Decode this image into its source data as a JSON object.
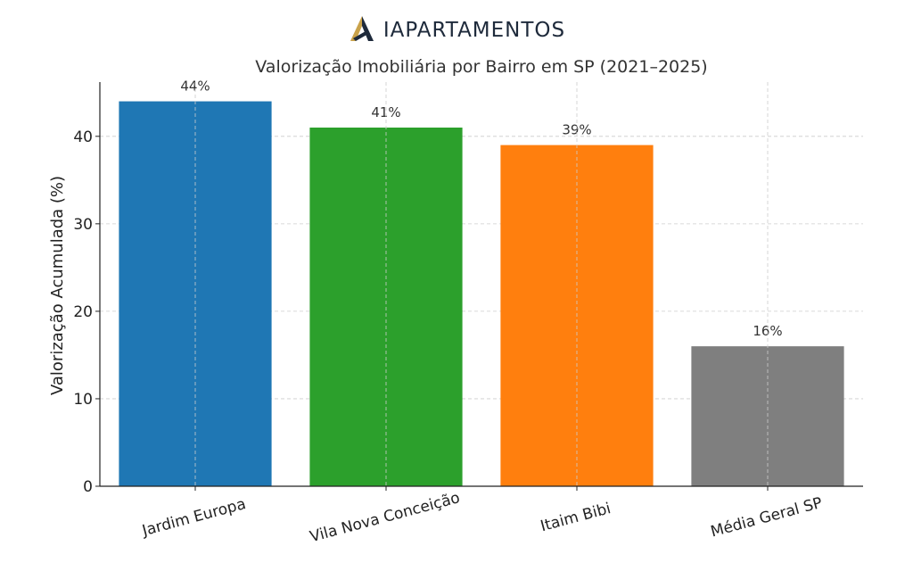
{
  "brand": {
    "name": "IAPARTAMENTOS",
    "logo_icon": "stylized-A-logo",
    "colors": {
      "gold": "#c9a24a",
      "navy": "#1e2a3b"
    }
  },
  "chart_data": {
    "type": "bar",
    "title": "Valorização Imobiliária por Bairro em SP (2021–2025)",
    "xlabel": "",
    "ylabel": "Valorização Acumulada (%)",
    "categories": [
      "Jardim Europa",
      "Vila Nova Conceição",
      "Itaim Bibi",
      "Média Geral SP"
    ],
    "values": [
      44,
      41,
      39,
      16
    ],
    "data_labels": [
      "44%",
      "41%",
      "39%",
      "16%"
    ],
    "colors": [
      "#1f77b4",
      "#2ca02c",
      "#ff7f0e",
      "#7f7f7f"
    ],
    "yticks": [
      0,
      10,
      20,
      30,
      40
    ],
    "ytick_labels": [
      "0",
      "10",
      "20",
      "30",
      "40"
    ],
    "ylim": [
      0,
      46.2
    ],
    "grid": true,
    "legend": false
  }
}
